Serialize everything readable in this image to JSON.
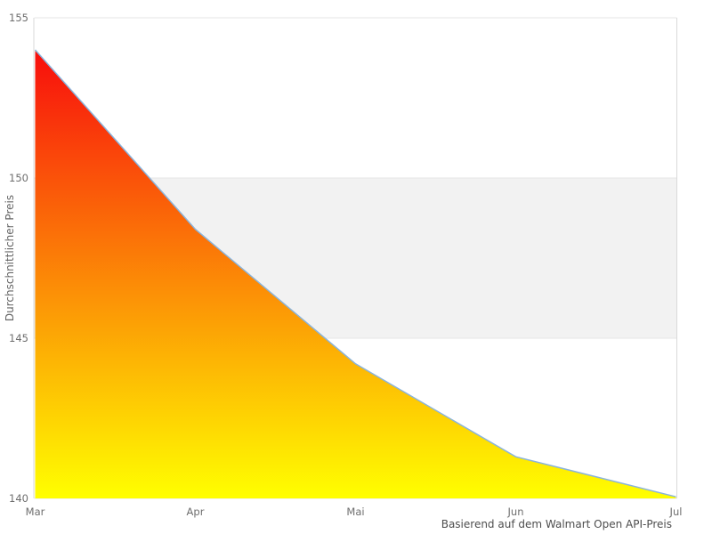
{
  "chart_data": {
    "type": "area",
    "title": "",
    "categories": [
      "Mar",
      "Apr",
      "Mai",
      "Jun",
      "Jul"
    ],
    "values": [
      154,
      148.4,
      144.2,
      141.3,
      140.05
    ],
    "xlabel": "Basierend auf dem Walmart Open API-Preis",
    "ylabel": "Durchschnittlicher Preis",
    "ylim": [
      140,
      155
    ],
    "yticks": [
      140,
      145,
      150,
      155
    ],
    "grid": "horizontal-only",
    "legend": "none",
    "plot_band": {
      "from": 145,
      "to": 150,
      "color": "#f2f2f2"
    },
    "colors": {
      "area_gradient_top": "#f80d0d",
      "area_gradient_bottom": "#ffff00",
      "line": "#8ab4dc",
      "gridline": "#e6e6e6",
      "axis_line": "#d9d9d9",
      "tick_label": "#6e6e6e",
      "y_axis_title": "#666666",
      "x_axis_title": "#4d4d4d",
      "background": "#ffffff"
    }
  }
}
